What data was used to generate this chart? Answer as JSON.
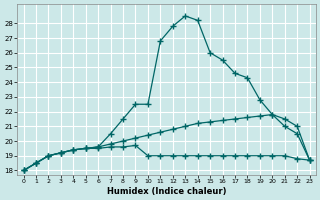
{
  "xlabel": "Humidex (Indice chaleur)",
  "x_values": [
    0,
    1,
    2,
    3,
    4,
    5,
    6,
    7,
    8,
    9,
    10,
    11,
    12,
    13,
    14,
    15,
    16,
    17,
    18,
    19,
    20,
    21,
    22,
    23
  ],
  "line1_y": [
    18.0,
    18.5,
    19.0,
    19.2,
    19.4,
    19.5,
    19.5,
    19.6,
    19.6,
    19.7,
    19.0,
    19.0,
    19.0,
    19.0,
    19.0,
    19.0,
    19.0,
    19.0,
    19.0,
    19.0,
    19.0,
    19.0,
    18.8,
    18.7
  ],
  "line2_y": [
    18.0,
    18.5,
    19.0,
    19.2,
    19.4,
    19.5,
    19.6,
    19.8,
    20.0,
    20.2,
    20.4,
    20.6,
    20.8,
    21.0,
    21.2,
    21.3,
    21.4,
    21.5,
    21.6,
    21.7,
    21.8,
    21.5,
    21.0,
    18.7
  ],
  "line3_y": [
    18.0,
    18.5,
    19.0,
    19.2,
    19.4,
    19.5,
    19.6,
    20.5,
    21.5,
    22.5,
    22.5,
    26.8,
    27.8,
    28.5,
    28.2,
    26.0,
    25.5,
    24.6,
    24.3,
    22.8,
    21.8,
    21.0,
    20.5,
    18.7
  ],
  "bg_color": "#cce8e8",
  "grid_color": "#ffffff",
  "line_color": "#006666",
  "ylim_min": 18,
  "ylim_max": 29,
  "yticks": [
    18,
    19,
    20,
    21,
    22,
    23,
    24,
    25,
    26,
    27,
    28
  ],
  "xticks": [
    0,
    1,
    2,
    3,
    4,
    5,
    6,
    7,
    8,
    9,
    10,
    11,
    12,
    13,
    14,
    15,
    16,
    17,
    18,
    19,
    20,
    21,
    22,
    23
  ]
}
